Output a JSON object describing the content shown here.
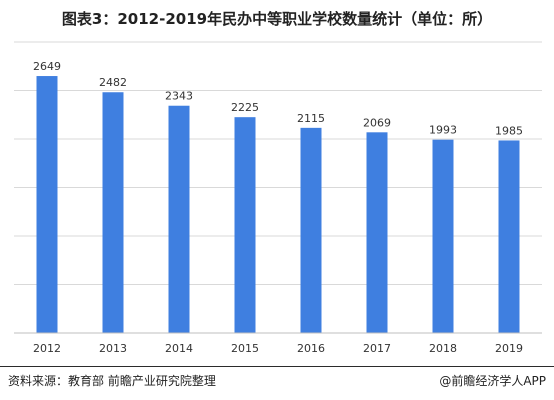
{
  "title": "图表3：2012-2019年民办中等职业学校数量统计（单位：所）",
  "footer": {
    "source": "资料来源：教育部 前瞻产业研究院整理",
    "brand": "@前瞻经济学人APP"
  },
  "colors": {
    "bar": "#3f7fe0",
    "grid": "#d9d9d9",
    "axis": "#bfbfbf",
    "text": "#333333"
  },
  "chart_data": {
    "type": "bar",
    "categories": [
      "2012",
      "2013",
      "2014",
      "2015",
      "2016",
      "2017",
      "2018",
      "2019"
    ],
    "values": [
      2649,
      2482,
      2343,
      2225,
      2115,
      2069,
      1993,
      1985
    ],
    "title": "图表3：2012-2019年民办中等职业学校数量统计（单位：所）",
    "xlabel": "",
    "ylabel": "",
    "ylim": [
      0,
      3000
    ],
    "grid": true,
    "data_labels": true,
    "legend": "none"
  }
}
